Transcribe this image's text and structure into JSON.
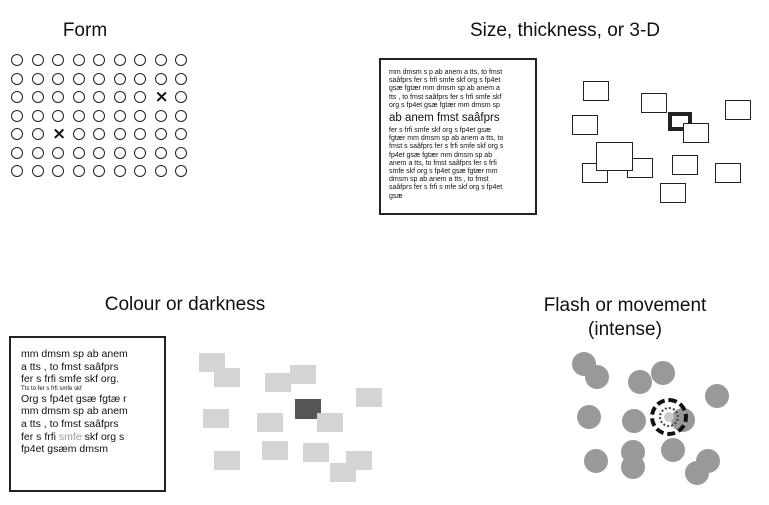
{
  "headings": {
    "form": "Form",
    "size": "Size, thickness, or 3-D",
    "colour": "Colour or darkness",
    "flash_line1": "Flash or movement",
    "flash_line2": "(intense)"
  },
  "form_grid": {
    "rows": [
      "OOOOOOOOO",
      "OOOOOOOOO",
      "OOOOOOOXO",
      "OOOOOOOOO",
      "OOXOOOOOO",
      "OOOOOOOOO",
      "OOOOOOOOO"
    ],
    "circle_symbol": "O",
    "cross_symbol": "×"
  },
  "size_text": {
    "lines": [
      {
        "text": "mm dmsm s p ab anem a tts, to fmst",
        "big": false
      },
      {
        "text": "saâfprs fer s frfi smfe skf org s fp4et",
        "big": false
      },
      {
        "text": "gsæ fgtær mm dmsm sp ab anem a",
        "big": false
      },
      {
        "text": "tts , to fmst saâfprs fer s frfi smfe skf",
        "big": false
      },
      {
        "text": "org s fp4et gsæ fgtær mm dmsm sp",
        "big": false
      },
      {
        "text": "ab anem fmst saâfprs",
        "big": true
      },
      {
        "text": "fer s frfi smfe skf org s fp4et gsæ",
        "big": false
      },
      {
        "text": "fgtær mm dmsm sp ab anem a tts, to",
        "big": false
      },
      {
        "text": "fmst s saâfprs fer s frfi smfe skf org s",
        "big": false
      },
      {
        "text": "fp4et gsæ fgtær mm dmsm sp ab",
        "big": false
      },
      {
        "text": "anem a tts, to fmst saâfprs fer s frfi",
        "big": false
      },
      {
        "text": "smfe skf org s fp4et gsæ fgtær mm",
        "big": false
      },
      {
        "text": "dmsm sp ab anem a tts , to fmst",
        "big": false
      },
      {
        "text": "saâfprs fer s frfi s mfe skf org s fp4et",
        "big": false
      },
      {
        "text": "gsæ",
        "big": false
      }
    ]
  },
  "colour_text": {
    "lines": [
      {
        "parts": [
          {
            "text": "mm dmsm sp ab anem",
            "grey": false
          }
        ],
        "tiny": false
      },
      {
        "parts": [
          {
            "text": "a tts , to fmst saâfprs",
            "grey": false
          }
        ],
        "tiny": false
      },
      {
        "parts": [
          {
            "text": "fer s frfi smfe skf org.",
            "grey": false
          }
        ],
        "tiny": false
      },
      {
        "parts": [
          {
            "text": "Tts to fer s frfi smfe skf",
            "grey": false
          }
        ],
        "tiny": true
      },
      {
        "parts": [
          {
            "text": "Org s fp4et gsæ fgtæ r",
            "grey": false
          }
        ],
        "tiny": false
      },
      {
        "parts": [
          {
            "text": "mm dmsm sp ab anem",
            "grey": false
          }
        ],
        "tiny": false
      },
      {
        "parts": [
          {
            "text": "a tts , to fmst saâfprs",
            "grey": false
          }
        ],
        "tiny": false
      },
      {
        "parts": [
          {
            "text": "fer s frfi ",
            "grey": false
          },
          {
            "text": "smfe",
            "grey": true
          },
          {
            "text": " skf org s",
            "grey": false
          }
        ],
        "tiny": false
      },
      {
        "parts": [
          {
            "text": "fp4et gsæm dmsm",
            "grey": false
          }
        ],
        "tiny": false
      }
    ]
  },
  "colors": {
    "light_grey": "#d4d4d4",
    "dark_grey": "#555555",
    "dot_grey": "#999999"
  }
}
